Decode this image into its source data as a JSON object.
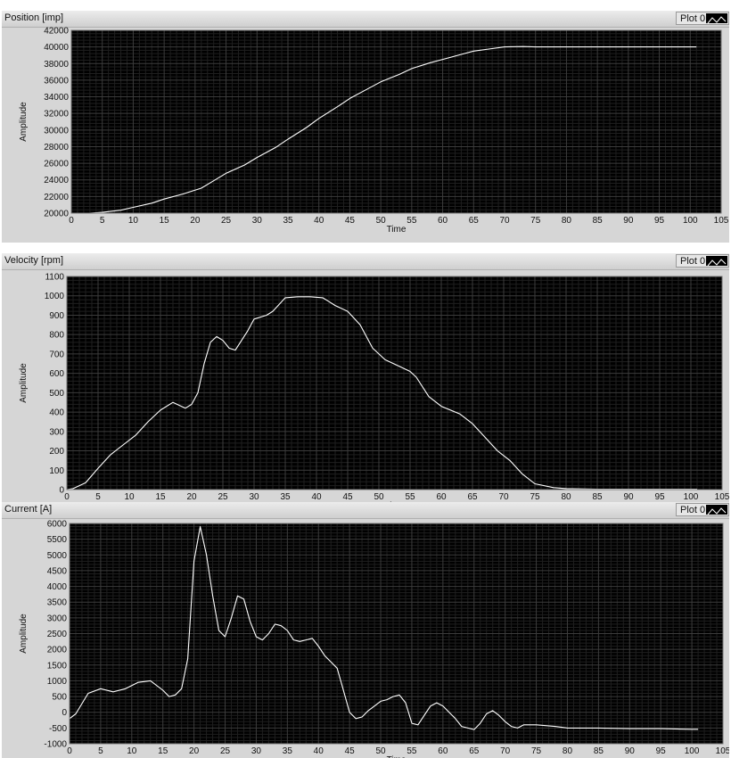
{
  "legend_label": "Plot 0",
  "colors": {
    "plot_bg": "#000000",
    "trace": "#ffffff",
    "grid_major": "#3c3c3c",
    "grid_minor": "#1f1f1f",
    "panel": "#d6d6d6"
  },
  "chart_data": [
    {
      "type": "line",
      "title": "Position  [imp]",
      "xlabel": "Time",
      "ylabel": "Amplitude",
      "xlim": [
        0,
        105
      ],
      "ylim": [
        20000,
        42000
      ],
      "x_ticks": [
        0,
        5,
        10,
        15,
        20,
        25,
        30,
        35,
        40,
        45,
        50,
        55,
        60,
        65,
        70,
        75,
        80,
        85,
        90,
        95,
        100,
        105
      ],
      "y_ticks": [
        20000,
        22000,
        24000,
        26000,
        28000,
        30000,
        32000,
        34000,
        36000,
        38000,
        40000,
        42000
      ],
      "grid": true,
      "series": [
        {
          "x": [
            0,
            3,
            5,
            8,
            10,
            13,
            15,
            18,
            21,
            23,
            25,
            28,
            30,
            33,
            35,
            38,
            40,
            43,
            45,
            48,
            50,
            53,
            55,
            58,
            60,
            63,
            65,
            68,
            70,
            73,
            75,
            80,
            85,
            90,
            95,
            100,
            101
          ],
          "y": [
            20000,
            20000,
            20100,
            20350,
            20700,
            21200,
            21700,
            22300,
            23000,
            23900,
            24800,
            25800,
            26700,
            27900,
            28900,
            30300,
            31400,
            32800,
            33800,
            35000,
            35800,
            36700,
            37400,
            38100,
            38500,
            39100,
            39500,
            39800,
            40000,
            40050,
            40000,
            40000,
            40000,
            40000,
            40000,
            40000,
            40000
          ]
        }
      ]
    },
    {
      "type": "line",
      "title": "Velocity [rpm]",
      "xlabel": "Time",
      "ylabel": "Amplitude",
      "xlim": [
        0,
        105
      ],
      "ylim": [
        0,
        1100
      ],
      "x_ticks": [
        0,
        5,
        10,
        15,
        20,
        25,
        30,
        35,
        40,
        45,
        50,
        55,
        60,
        65,
        70,
        75,
        80,
        85,
        90,
        95,
        100,
        105
      ],
      "y_ticks": [
        0,
        100,
        200,
        300,
        400,
        500,
        600,
        700,
        800,
        900,
        1000,
        1100
      ],
      "grid": true,
      "series": [
        {
          "x": [
            0,
            1,
            3,
            5,
            7,
            9,
            11,
            13,
            15,
            17,
            19,
            20,
            21,
            22,
            23,
            24,
            25,
            26,
            27,
            28,
            29,
            30,
            32,
            33,
            35,
            37,
            39,
            41,
            42,
            43,
            45,
            47,
            49,
            51,
            53,
            55,
            56,
            58,
            60,
            63,
            65,
            67,
            69,
            71,
            73,
            75,
            78,
            80,
            85,
            90,
            95,
            100,
            101
          ],
          "y": [
            0,
            5,
            35,
            110,
            180,
            230,
            280,
            350,
            410,
            450,
            420,
            440,
            500,
            650,
            760,
            790,
            770,
            730,
            720,
            770,
            820,
            880,
            900,
            920,
            990,
            995,
            995,
            990,
            970,
            950,
            920,
            850,
            730,
            670,
            640,
            610,
            580,
            480,
            430,
            390,
            340,
            270,
            200,
            150,
            80,
            30,
            10,
            5,
            2,
            2,
            2,
            2,
            2
          ]
        }
      ]
    },
    {
      "type": "line",
      "title": "Current [A]",
      "xlabel": "Time",
      "ylabel": "Amplitude",
      "xlim": [
        0,
        105
      ],
      "ylim": [
        -1000,
        6000
      ],
      "x_ticks": [
        0,
        5,
        10,
        15,
        20,
        25,
        30,
        35,
        40,
        45,
        50,
        55,
        60,
        65,
        70,
        75,
        80,
        85,
        90,
        95,
        100,
        105
      ],
      "y_ticks": [
        -1000,
        -500,
        0,
        500,
        1000,
        1500,
        2000,
        2500,
        3000,
        3500,
        4000,
        4500,
        5000,
        5500,
        6000
      ],
      "grid": true,
      "series": [
        {
          "x": [
            0,
            1,
            3,
            5,
            7,
            9,
            11,
            13,
            15,
            16,
            17,
            18,
            19,
            20,
            21,
            22,
            23,
            24,
            25,
            26,
            27,
            28,
            29,
            30,
            31,
            32,
            33,
            34,
            35,
            36,
            37,
            38,
            39,
            40,
            41,
            42,
            43,
            44,
            45,
            46,
            47,
            48,
            49,
            50,
            51,
            52,
            53,
            54,
            55,
            56,
            57,
            58,
            59,
            60,
            61,
            62,
            63,
            64,
            65,
            66,
            67,
            68,
            69,
            70,
            71,
            72,
            73,
            75,
            78,
            80,
            85,
            90,
            95,
            100,
            101
          ],
          "y": [
            -200,
            -50,
            600,
            750,
            650,
            750,
            950,
            1000,
            700,
            500,
            550,
            750,
            1700,
            4800,
            5900,
            5000,
            3700,
            2600,
            2400,
            3000,
            3700,
            3600,
            2900,
            2400,
            2300,
            2500,
            2800,
            2750,
            2600,
            2300,
            2250,
            2300,
            2350,
            2100,
            1800,
            1600,
            1400,
            700,
            0,
            -200,
            -150,
            50,
            200,
            350,
            400,
            500,
            550,
            300,
            -350,
            -400,
            -100,
            200,
            300,
            200,
            0,
            -200,
            -450,
            -500,
            -550,
            -350,
            -50,
            50,
            -100,
            -300,
            -450,
            -500,
            -400,
            -400,
            -450,
            -500,
            -500,
            -520,
            -520,
            -540,
            -540
          ]
        }
      ]
    }
  ]
}
